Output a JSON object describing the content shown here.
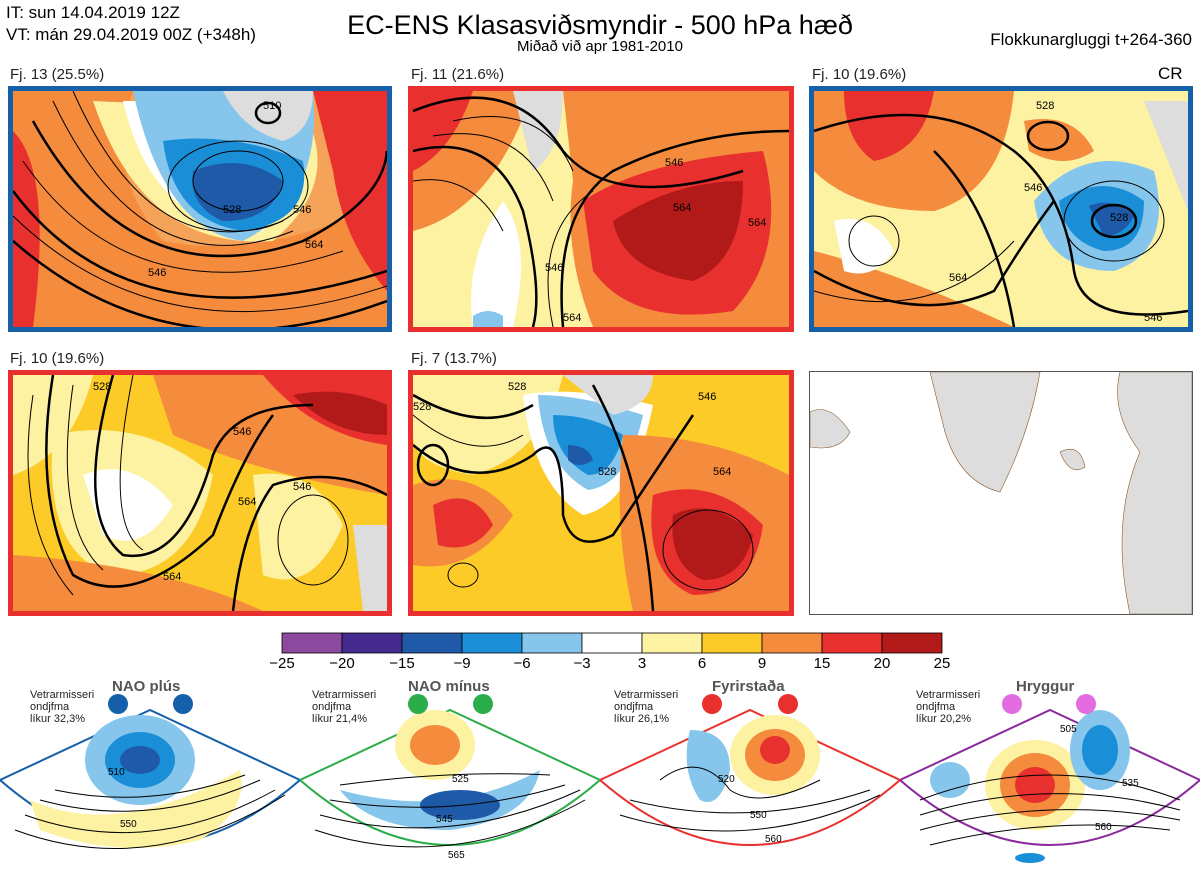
{
  "header": {
    "it": "IT: sun 14.04.2019 12Z",
    "vt": "VT: mán 29.04.2019 00Z  (+348h)",
    "title": "EC-ENS Klasasviðsmyndir - 500 hPa hæð",
    "subtitle": "Miðað við apr 1981-2010",
    "window": "Flokkunargluggi t+264-360"
  },
  "panels": [
    {
      "label": "Fj. 13 (25.5%)",
      "border": "#1560a8",
      "cr": "",
      "contours": [
        "510",
        "528",
        "546",
        "564",
        "546"
      ]
    },
    {
      "label": "Fj. 11 (21.6%)",
      "border": "#e8312f",
      "cr": "",
      "contours": [
        "546",
        "564",
        "564",
        "546",
        "564"
      ]
    },
    {
      "label": "Fj. 10 (19.6%)",
      "border": "#1560a8",
      "cr": "CR",
      "contours": [
        "528",
        "528",
        "546",
        "564",
        "546"
      ]
    },
    {
      "label": "Fj. 10 (19.6%)",
      "border": "#e8312f",
      "cr": "",
      "contours": [
        "528",
        "546",
        "546",
        "564",
        "564"
      ]
    },
    {
      "label": "Fj. 7 (13.7%)",
      "border": "#e8312f",
      "cr": "",
      "contours": [
        "528",
        "528",
        "528",
        "546",
        "564"
      ]
    }
  ],
  "colorbar": {
    "colors": [
      "#8b4a9e",
      "#442a8c",
      "#1e5aa8",
      "#1a8fd8",
      "#86c6ec",
      "#ffffff",
      "#fdf1a2",
      "#fccb27",
      "#f58b3c",
      "#e8312f",
      "#b21a1a"
    ],
    "ticks": [
      "−25",
      "−20",
      "−15",
      "−9",
      "−6",
      "−3",
      "3",
      "6",
      "9",
      "15",
      "20",
      "25"
    ]
  },
  "regimes": [
    {
      "title": "NAO plús",
      "info": [
        "Vetrarmisseri",
        "ondjfma",
        "líkur 32,3%"
      ],
      "color": "#1560a8",
      "contours": [
        "510",
        "550"
      ]
    },
    {
      "title": "NAO mínus",
      "info": [
        "Vetrarmisseri",
        "ondjfma",
        "líkur 21,4%"
      ],
      "color": "#2bae4a",
      "contours": [
        "525",
        "545",
        "565"
      ]
    },
    {
      "title": "Fyrirstaða",
      "info": [
        "Vetrarmisseri",
        "ondjfma",
        "líkur 26,1%"
      ],
      "color": "#e8312f",
      "contours": [
        "520",
        "550",
        "560"
      ]
    },
    {
      "title": "Hryggur",
      "info": [
        "Vetrarmisseri",
        "ondjfma",
        "líkur 20,2%"
      ],
      "color": "#e36de0",
      "contours": [
        "505",
        "535",
        "560"
      ]
    }
  ]
}
